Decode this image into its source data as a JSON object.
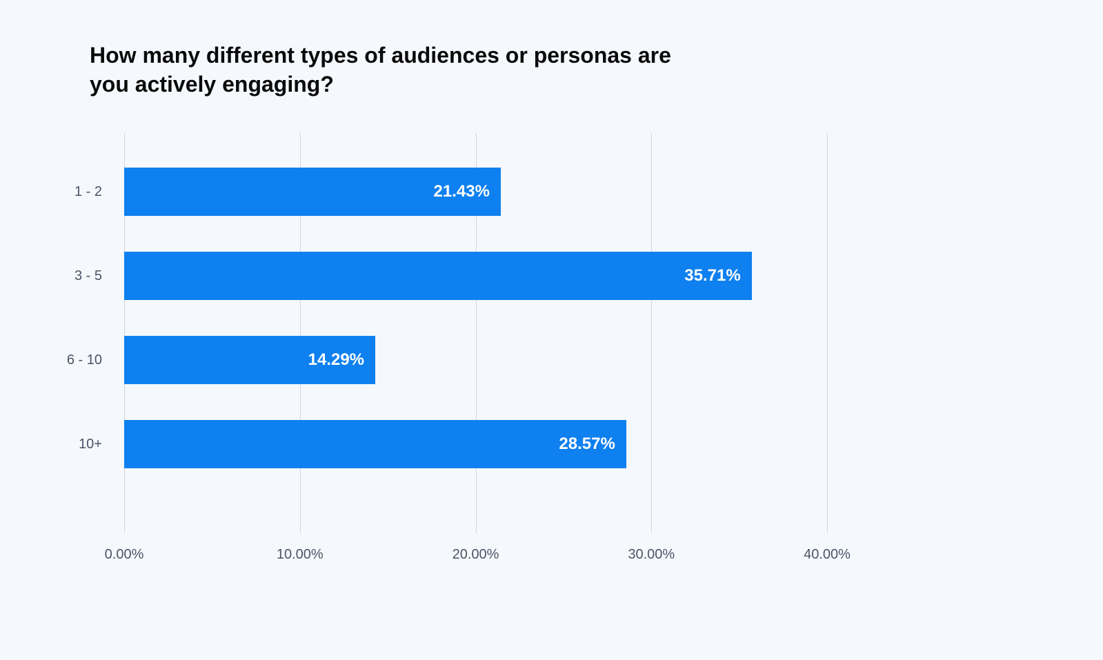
{
  "chart": {
    "type": "bar-horizontal",
    "title": "How many different types of audiences or personas are you actively engaging?",
    "title_fontsize": 32,
    "title_color": "#0a0a0a",
    "background_color": "#f5f8fc",
    "bar_color": "#0e80f0",
    "bar_label_color": "#ffffff",
    "bar_label_fontsize": 24,
    "axis_label_color": "#4a5568",
    "axis_label_fontsize": 20,
    "grid_color": "#d0d5dd",
    "categories": [
      "1 - 2",
      "3 - 5",
      "6 - 10",
      "10+"
    ],
    "values": [
      21.43,
      35.71,
      14.29,
      28.57
    ],
    "value_labels": [
      "21.43%",
      "35.71%",
      "14.29%",
      "28.57%"
    ],
    "xlim": [
      0,
      40
    ],
    "xtick_step": 10,
    "xtick_labels": [
      "0.00%",
      "10.00%",
      "20.00%",
      "30.00%",
      "40.00%"
    ],
    "bar_row_height": 70,
    "bar_row_gap": 52,
    "plot_top_offset": 50
  }
}
